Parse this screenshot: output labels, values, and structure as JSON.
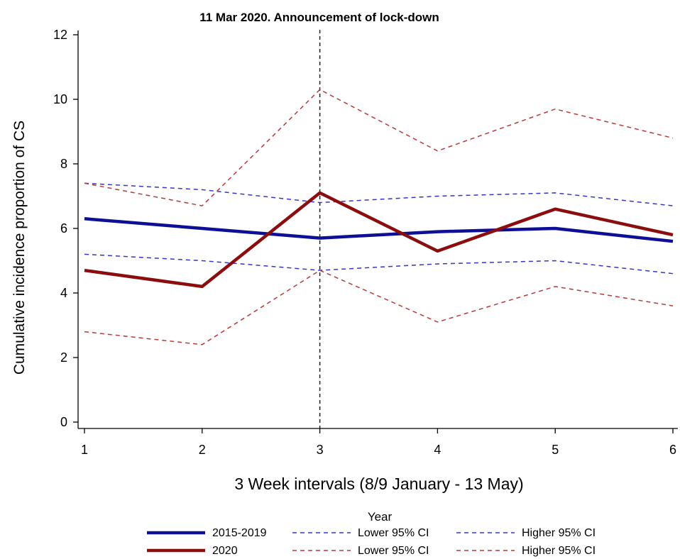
{
  "chart_data": {
    "type": "line",
    "annotation": "11 Mar 2020. Announcement of lock-down",
    "annotation_x": 3,
    "xlabel": "3 Week intervals (8/9 January - 13 May)",
    "ylabel": "Cumulative incidence proportion of CS",
    "x": [
      1,
      2,
      3,
      4,
      5,
      6
    ],
    "xlim": [
      1,
      6
    ],
    "ylim": [
      0,
      12
    ],
    "yticks": [
      0,
      2,
      4,
      6,
      8,
      10,
      12
    ],
    "xticks": [
      1,
      2,
      3,
      4,
      5,
      6
    ],
    "grid": false,
    "legend_title": "Year",
    "legend_position": "bottom",
    "colors": {
      "blue": "#0d0f96",
      "red": "#8b0d0d",
      "ci_blue": "#3535c8",
      "ci_red": "#b83a3a"
    },
    "series": [
      {
        "name": "2015-2019",
        "color": "blue",
        "style": "solid",
        "values": [
          6.3,
          6.0,
          5.7,
          5.9,
          6.0,
          5.6
        ]
      },
      {
        "name": "Lower 95% CI",
        "color": "ci_blue",
        "style": "dashed",
        "values": [
          5.2,
          5.0,
          4.7,
          4.9,
          5.0,
          4.6
        ]
      },
      {
        "name": "Higher 95% CI",
        "color": "ci_blue",
        "style": "dashed",
        "values": [
          7.4,
          7.2,
          6.8,
          7.0,
          7.1,
          6.7
        ]
      },
      {
        "name": "2020",
        "color": "red",
        "style": "solid",
        "values": [
          4.7,
          4.2,
          7.1,
          5.3,
          6.6,
          5.8
        ]
      },
      {
        "name": "Lower 95% CI",
        "color": "ci_red",
        "style": "dashed",
        "values": [
          2.8,
          2.4,
          4.7,
          3.1,
          4.2,
          3.6
        ]
      },
      {
        "name": "Higher 95% CI",
        "color": "ci_red",
        "style": "dashed",
        "values": [
          7.4,
          6.7,
          10.3,
          8.4,
          9.7,
          8.8
        ]
      }
    ]
  }
}
